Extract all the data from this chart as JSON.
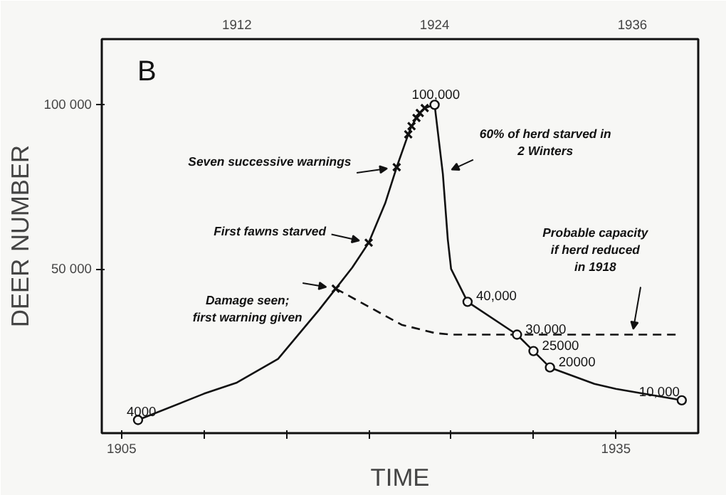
{
  "chart_data": {
    "type": "line",
    "title": "B",
    "xlabel": "TIME",
    "ylabel": "DEER NUMBER",
    "xlim": [
      1903.8,
      1940
    ],
    "ylim": [
      0,
      120000
    ],
    "xticks": [
      1905,
      {
        "value": 1910,
        "label": null
      },
      {
        "value": 1915,
        "label": null
      },
      {
        "value": 1920,
        "label": null
      },
      {
        "value": 1925,
        "label": null
      },
      {
        "value": 1930,
        "label": null
      },
      1935
    ],
    "x2lim": [
      1903.8,
      1940
    ],
    "x2ticks": [
      1912,
      1924,
      1936
    ],
    "yticks": [
      {
        "value": 50000,
        "label": "50 000"
      },
      {
        "value": 100000,
        "label": "100 000"
      }
    ],
    "grid": false,
    "series": [
      {
        "color": "#111111",
        "marker": "none",
        "line_style": "solid",
        "x": [
          1906,
          1910,
          1912,
          1914.5,
          1917,
          1918,
          1919,
          1920,
          1921,
          1921.7,
          1922.4,
          1922.6,
          1922.9,
          1923.1,
          1923.4,
          1924,
          1924.5,
          1924.8,
          1925,
          1926,
          1929,
          1930,
          1931,
          1933.7,
          1935,
          1939
        ],
        "values": [
          4000,
          12000,
          15400,
          22600,
          37600,
          44000,
          50400,
          58000,
          70000,
          81000,
          91000,
          93500,
          96000,
          97500,
          99000,
          100000,
          79000,
          59000,
          50000,
          40000,
          30000,
          25000,
          20000,
          15000,
          13500,
          10000
        ]
      },
      {
        "color": "#111111",
        "marker": "none",
        "line_style": "dashed",
        "x": [
          1918,
          1920,
          1922,
          1924,
          1925,
          1938.7
        ],
        "values": [
          44000,
          38500,
          33000,
          30500,
          30000,
          30000
        ]
      },
      {
        "type": "scatter",
        "color": "#111111",
        "marker": "circle",
        "x": [
          1906,
          1924,
          1926,
          1929,
          1930,
          1931,
          1939
        ],
        "values": [
          4000,
          100000,
          40000,
          30000,
          25000,
          20000,
          10000
        ],
        "value_labels": [
          "4000",
          "100,000",
          "40,000",
          "30,000",
          "25000",
          "20000",
          "10,000"
        ]
      },
      {
        "type": "scatter",
        "color": "#111111",
        "marker": "cross",
        "x": [
          1918,
          1920,
          1921.7,
          1922.4,
          1922.6,
          1922.9,
          1923.1,
          1923.4
        ],
        "values": [
          44000,
          58000,
          81000,
          91000,
          93500,
          96000,
          97500,
          99000
        ]
      }
    ],
    "annotations": [
      {
        "text": "Seven successive warnings",
        "x": 1921.7,
        "y": 81000
      },
      {
        "text": "First fawns starved",
        "x": 1920,
        "y": 58000
      },
      {
        "text": "Damage seen;\nfirst warning given",
        "x": 1918,
        "y": 44000
      },
      {
        "text": "60% of herd starved in\n2 Winters",
        "x": 1924.5,
        "y": 79000
      },
      {
        "text": "Probable capacity\nif herd reduced\nin 1918",
        "x": 1936,
        "y": 30000
      }
    ]
  }
}
